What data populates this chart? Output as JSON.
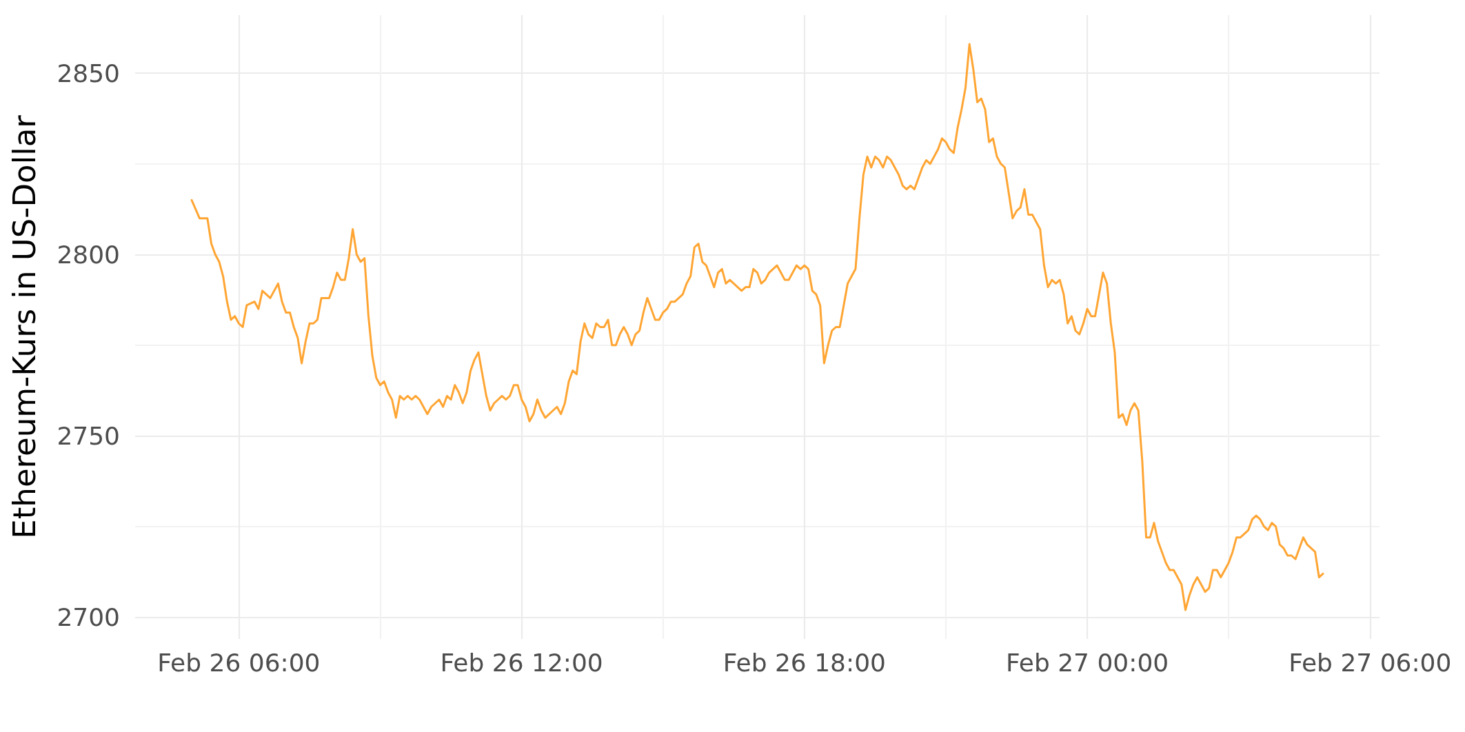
{
  "chart_data": {
    "type": "line",
    "ylabel": "Ethereum-Kurs in US-Dollar",
    "x": [
      "--02-26T05:00",
      "--02-26T05:10",
      "--02-26T05:20",
      "--02-26T05:25",
      "--02-26T05:30",
      "--02-26T05:35",
      "--02-26T05:40",
      "--02-26T05:45",
      "--02-26T05:50",
      "--02-26T05:55",
      "--02-26T06:00",
      "--02-26T06:05",
      "--02-26T06:10",
      "--02-26T06:20",
      "--02-26T06:25",
      "--02-26T06:30",
      "--02-26T06:35",
      "--02-26T06:40",
      "--02-26T06:45",
      "--02-26T06:50",
      "--02-26T06:55",
      "--02-26T07:00",
      "--02-26T07:05",
      "--02-26T07:10",
      "--02-26T07:15",
      "--02-26T07:20",
      "--02-26T07:25",
      "--02-26T07:30",
      "--02-26T07:35",
      "--02-26T07:40",
      "--02-26T07:45",
      "--02-26T07:50",
      "--02-26T07:55",
      "--02-26T08:00",
      "--02-26T08:05",
      "--02-26T08:10",
      "--02-26T08:15",
      "--02-26T08:20",
      "--02-26T08:25",
      "--02-26T08:30",
      "--02-26T08:35",
      "--02-26T08:40",
      "--02-26T08:45",
      "--02-26T08:50",
      "--02-26T08:55",
      "--02-26T09:00",
      "--02-26T09:05",
      "--02-26T09:10",
      "--02-26T09:15",
      "--02-26T09:20",
      "--02-26T09:25",
      "--02-26T09:30",
      "--02-26T09:35",
      "--02-26T09:40",
      "--02-26T09:45",
      "--02-26T09:50",
      "--02-26T09:55",
      "--02-26T10:00",
      "--02-26T10:05",
      "--02-26T10:10",
      "--02-26T10:15",
      "--02-26T10:20",
      "--02-26T10:25",
      "--02-26T10:30",
      "--02-26T10:35",
      "--02-26T10:40",
      "--02-26T10:45",
      "--02-26T10:50",
      "--02-26T10:55",
      "--02-26T11:00",
      "--02-26T11:05",
      "--02-26T11:10",
      "--02-26T11:15",
      "--02-26T11:20",
      "--02-26T11:25",
      "--02-26T11:30",
      "--02-26T11:35",
      "--02-26T11:40",
      "--02-26T11:45",
      "--02-26T11:50",
      "--02-26T11:55",
      "--02-26T12:00",
      "--02-26T12:05",
      "--02-26T12:10",
      "--02-26T12:15",
      "--02-26T12:20",
      "--02-26T12:25",
      "--02-26T12:30",
      "--02-26T12:35",
      "--02-26T12:40",
      "--02-26T12:45",
      "--02-26T12:50",
      "--02-26T12:55",
      "--02-26T13:00",
      "--02-26T13:05",
      "--02-26T13:10",
      "--02-26T13:15",
      "--02-26T13:20",
      "--02-26T13:25",
      "--02-26T13:30",
      "--02-26T13:35",
      "--02-26T13:40",
      "--02-26T13:45",
      "--02-26T13:50",
      "--02-26T13:55",
      "--02-26T14:00",
      "--02-26T14:05",
      "--02-26T14:10",
      "--02-26T14:15",
      "--02-26T14:20",
      "--02-26T14:25",
      "--02-26T14:30",
      "--02-26T14:35",
      "--02-26T14:40",
      "--02-26T14:45",
      "--02-26T14:50",
      "--02-26T14:55",
      "--02-26T15:00",
      "--02-26T15:05",
      "--02-26T15:10",
      "--02-26T15:15",
      "--02-26T15:20",
      "--02-26T15:25",
      "--02-26T15:30",
      "--02-26T15:35",
      "--02-26T15:40",
      "--02-26T15:45",
      "--02-26T15:50",
      "--02-26T15:55",
      "--02-26T16:00",
      "--02-26T16:05",
      "--02-26T16:10",
      "--02-26T16:15",
      "--02-26T16:20",
      "--02-26T16:25",
      "--02-26T16:30",
      "--02-26T16:35",
      "--02-26T16:40",
      "--02-26T16:45",
      "--02-26T16:50",
      "--02-26T16:55",
      "--02-26T17:00",
      "--02-26T17:05",
      "--02-26T17:10",
      "--02-26T17:15",
      "--02-26T17:20",
      "--02-26T17:25",
      "--02-26T17:30",
      "--02-26T17:35",
      "--02-26T17:40",
      "--02-26T17:45",
      "--02-26T17:50",
      "--02-26T17:55",
      "--02-26T18:00",
      "--02-26T18:05",
      "--02-26T18:10",
      "--02-26T18:15",
      "--02-26T18:20",
      "--02-26T18:25",
      "--02-26T18:30",
      "--02-26T18:35",
      "--02-26T18:40",
      "--02-26T18:45",
      "--02-26T18:50",
      "--02-26T18:55",
      "--02-26T19:00",
      "--02-26T19:05",
      "--02-26T19:10",
      "--02-26T19:15",
      "--02-26T19:20",
      "--02-26T19:25",
      "--02-26T19:30",
      "--02-26T19:35",
      "--02-26T19:40",
      "--02-26T19:45",
      "--02-26T19:50",
      "--02-26T19:55",
      "--02-26T20:00",
      "--02-26T20:05",
      "--02-26T20:10",
      "--02-26T20:15",
      "--02-26T20:20",
      "--02-26T20:25",
      "--02-26T20:30",
      "--02-26T20:35",
      "--02-26T20:40",
      "--02-26T20:45",
      "--02-26T20:50",
      "--02-26T20:55",
      "--02-26T21:00",
      "--02-26T21:05",
      "--02-26T21:10",
      "--02-26T21:15",
      "--02-26T21:20",
      "--02-26T21:25",
      "--02-26T21:30",
      "--02-26T21:35",
      "--02-26T21:40",
      "--02-26T21:45",
      "--02-26T21:50",
      "--02-26T21:55",
      "--02-26T22:00",
      "--02-26T22:05",
      "--02-26T22:10",
      "--02-26T22:15",
      "--02-26T22:20",
      "--02-26T22:25",
      "--02-26T22:30",
      "--02-26T22:35",
      "--02-26T22:40",
      "--02-26T22:45",
      "--02-26T22:50",
      "--02-26T22:55",
      "--02-26T23:00",
      "--02-26T23:05",
      "--02-26T23:10",
      "--02-26T23:15",
      "--02-26T23:20",
      "--02-26T23:25",
      "--02-26T23:30",
      "--02-26T23:35",
      "--02-26T23:40",
      "--02-26T23:45",
      "--02-26T23:50",
      "--02-26T23:55",
      "--02-27T00:00",
      "--02-27T00:05",
      "--02-27T00:10",
      "--02-27T00:15",
      "--02-27T00:20",
      "--02-27T00:25",
      "--02-27T00:30",
      "--02-27T00:35",
      "--02-27T00:40",
      "--02-27T00:45",
      "--02-27T00:50",
      "--02-27T00:55",
      "--02-27T01:00",
      "--02-27T01:05",
      "--02-27T01:10",
      "--02-27T01:15",
      "--02-27T01:20",
      "--02-27T01:25",
      "--02-27T01:30",
      "--02-27T01:35",
      "--02-27T01:40",
      "--02-27T01:45",
      "--02-27T01:50",
      "--02-27T01:55",
      "--02-27T02:00",
      "--02-27T02:05",
      "--02-27T02:10",
      "--02-27T02:15",
      "--02-27T02:20",
      "--02-27T02:25",
      "--02-27T02:30",
      "--02-27T02:35",
      "--02-27T02:40",
      "--02-27T02:45",
      "--02-27T02:50",
      "--02-27T02:55",
      "--02-27T03:00",
      "--02-27T03:05",
      "--02-27T03:10",
      "--02-27T03:15",
      "--02-27T03:20",
      "--02-27T03:25",
      "--02-27T03:30",
      "--02-27T03:35",
      "--02-27T03:40",
      "--02-27T03:45",
      "--02-27T03:50",
      "--02-27T03:55",
      "--02-27T04:00",
      "--02-27T04:05",
      "--02-27T04:10",
      "--02-27T04:15",
      "--02-27T04:20",
      "--02-27T04:25",
      "--02-27T04:30",
      "--02-27T04:35",
      "--02-27T04:40",
      "--02-27T04:45",
      "--02-27T04:50",
      "--02-27T04:55",
      "--02-27T05:00"
    ],
    "values": [
      2815,
      2810,
      2810,
      2803,
      2800,
      2798,
      2794,
      2787,
      2782,
      2783,
      2781,
      2780,
      2786,
      2787,
      2785,
      2790,
      2789,
      2788,
      2790,
      2792,
      2787,
      2784,
      2784,
      2780,
      2777,
      2770,
      2776,
      2781,
      2781,
      2782,
      2788,
      2788,
      2788,
      2791,
      2795,
      2793,
      2793,
      2799,
      2807,
      2800,
      2798,
      2799,
      2783,
      2772,
      2766,
      2764,
      2765,
      2762,
      2760,
      2755,
      2761,
      2760,
      2761,
      2760,
      2761,
      2760,
      2758,
      2756,
      2758,
      2759,
      2760,
      2758,
      2761,
      2760,
      2764,
      2762,
      2759,
      2762,
      2768,
      2771,
      2773,
      2767,
      2761,
      2757,
      2759,
      2760,
      2761,
      2760,
      2761,
      2764,
      2764,
      2760,
      2758,
      2754,
      2756,
      2760,
      2757,
      2755,
      2756,
      2757,
      2758,
      2756,
      2759,
      2765,
      2768,
      2767,
      2776,
      2781,
      2778,
      2777,
      2781,
      2780,
      2780,
      2782,
      2775,
      2775,
      2778,
      2780,
      2778,
      2775,
      2778,
      2779,
      2784,
      2788,
      2785,
      2782,
      2782,
      2784,
      2785,
      2787,
      2787,
      2788,
      2789,
      2792,
      2794,
      2802,
      2803,
      2798,
      2797,
      2794,
      2791,
      2795,
      2796,
      2792,
      2793,
      2792,
      2791,
      2790,
      2791,
      2791,
      2796,
      2795,
      2792,
      2793,
      2795,
      2796,
      2797,
      2795,
      2793,
      2793,
      2795,
      2797,
      2796,
      2797,
      2796,
      2790,
      2789,
      2786,
      2770,
      2775,
      2779,
      2780,
      2780,
      2786,
      2792,
      2794,
      2796,
      2810,
      2822,
      2827,
      2824,
      2827,
      2826,
      2824,
      2827,
      2826,
      2824,
      2822,
      2819,
      2818,
      2819,
      2818,
      2821,
      2824,
      2826,
      2825,
      2827,
      2829,
      2832,
      2831,
      2829,
      2828,
      2835,
      2840,
      2846,
      2858,
      2851,
      2842,
      2843,
      2840,
      2831,
      2832,
      2827,
      2825,
      2824,
      2817,
      2810,
      2812,
      2813,
      2818,
      2811,
      2811,
      2809,
      2807,
      2797,
      2791,
      2793,
      2792,
      2793,
      2789,
      2781,
      2783,
      2779,
      2778,
      2781,
      2785,
      2783,
      2783,
      2789,
      2795,
      2792,
      2781,
      2773,
      2755,
      2756,
      2753,
      2757,
      2759,
      2757,
      2743,
      2722,
      2722,
      2726,
      2721,
      2718,
      2715,
      2713,
      2713,
      2711,
      2709,
      2702,
      2706,
      2709,
      2711,
      2709,
      2707,
      2708,
      2713,
      2713,
      2711,
      2713,
      2715,
      2718,
      2722,
      2722,
      2723,
      2724,
      2727,
      2728,
      2727,
      2725,
      2724,
      2726,
      2725,
      2720,
      2719,
      2717,
      2717,
      2716,
      2719,
      2722,
      2720,
      2719,
      2718,
      2711,
      2712
    ],
    "color": "#ffa533",
    "xlim": [
      "--02-26T03:48",
      "--02-27T06:12"
    ],
    "ylim": [
      2694,
      2866
    ],
    "xticks": [
      {
        "value": "--02-26T06:00",
        "label": "Feb 26 06:00"
      },
      {
        "value": "--02-26T09:00",
        "label": null
      },
      {
        "value": "--02-26T12:00",
        "label": "Feb 26 12:00"
      },
      {
        "value": "--02-26T15:00",
        "label": null
      },
      {
        "value": "--02-26T18:00",
        "label": "Feb 26 18:00"
      },
      {
        "value": "--02-26T21:00",
        "label": null
      },
      {
        "value": "--02-27T00:00",
        "label": "Feb 27 00:00"
      },
      {
        "value": "--02-27T03:00",
        "label": null
      },
      {
        "value": "--02-27T06:00",
        "label": "Feb 27 06:00"
      }
    ],
    "yticks": [
      2700,
      {
        "value": 2725,
        "label": null
      },
      2750,
      {
        "value": 2775,
        "label": null
      },
      2800,
      {
        "value": 2825,
        "label": null
      },
      2850
    ],
    "grid": true
  }
}
